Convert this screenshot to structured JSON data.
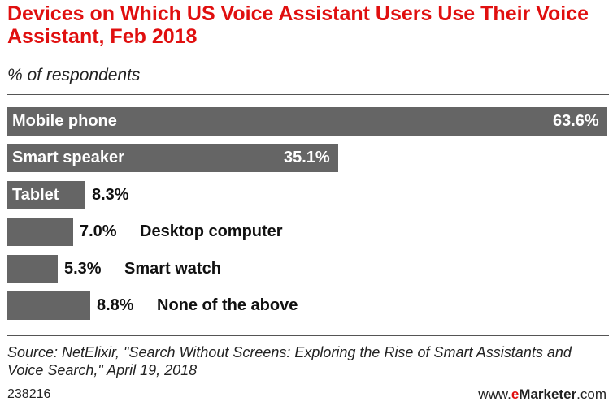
{
  "chart_data": {
    "type": "bar",
    "orientation": "horizontal",
    "title": "Devices on Which US Voice Assistant Users Use Their Voice Assistant, Feb 2018",
    "subtitle": "% of respondents",
    "categories": [
      "Mobile phone",
      "Smart speaker",
      "Tablet",
      "Desktop computer",
      "Smart watch",
      "None of the above"
    ],
    "values": [
      63.6,
      35.1,
      8.3,
      7.0,
      5.3,
      8.8
    ],
    "value_labels": [
      "63.6%",
      "35.1%",
      "8.3%",
      "7.0%",
      "5.3%",
      "8.8%"
    ],
    "xlim": [
      0,
      63.6
    ],
    "bar_color": "#656565",
    "grid": false
  },
  "source": "Source: NetElixir, \"Search Without Screens: Exploring the Rise of Smart Assistants and Voice Search,\" April 19, 2018",
  "footer": {
    "id": "238216",
    "brand_prefix": "www.",
    "brand_e": "e",
    "brand_name": "Marketer",
    "brand_suffix": ".com"
  },
  "colors": {
    "title": "#e00f0f",
    "accent": "#e00f0f"
  }
}
